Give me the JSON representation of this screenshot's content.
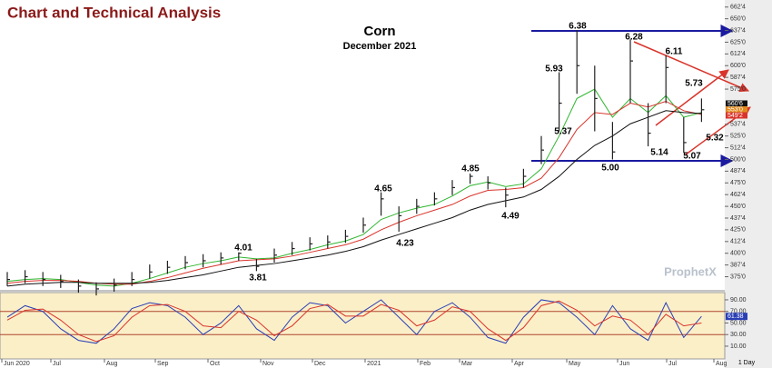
{
  "header": {
    "title": "Chart and Technical Analysis"
  },
  "chart_data": [
    {
      "type": "ohlc",
      "title": "Corn",
      "subtitle": "December 2021",
      "high": [
        380,
        382,
        380,
        377,
        372,
        369,
        373,
        380,
        388,
        392,
        397,
        399,
        401,
        401,
        394,
        405,
        412,
        417,
        419,
        425,
        438,
        465,
        450,
        458,
        465,
        478,
        485,
        482,
        470,
        490,
        525,
        593,
        638,
        600,
        540,
        628,
        560,
        611,
        545,
        565
      ],
      "low": [
        365,
        368,
        365,
        363,
        358,
        355,
        359,
        365,
        373,
        378,
        383,
        385,
        388,
        392,
        381,
        390,
        398,
        403,
        405,
        411,
        422,
        440,
        423,
        442,
        451,
        462,
        474,
        468,
        449,
        470,
        495,
        530,
        570,
        530,
        500,
        560,
        514,
        560,
        507,
        540
      ],
      "close": [
        372,
        375,
        372,
        370,
        365,
        362,
        366,
        372,
        380,
        385,
        390,
        392,
        395,
        400,
        386,
        398,
        405,
        410,
        412,
        418,
        430,
        458,
        440,
        450,
        458,
        470,
        482,
        475,
        462,
        482,
        510,
        560,
        600,
        565,
        508,
        605,
        528,
        598,
        518,
        553
      ],
      "color": "#222222",
      "series": [
        {
          "color": "#2fb52f",
          "values": [
            370,
            372,
            373,
            372,
            369,
            366,
            365,
            368,
            373,
            379,
            385,
            389,
            392,
            396,
            394,
            395,
            400,
            404,
            409,
            413,
            420,
            436,
            443,
            448,
            452,
            461,
            472,
            476,
            471,
            474,
            490,
            525,
            565,
            575,
            545,
            565,
            550,
            568,
            545,
            550
          ]
        },
        {
          "color": "#d9342b",
          "values": [
            368,
            370,
            371,
            371,
            370,
            368,
            367,
            367,
            370,
            374,
            379,
            384,
            388,
            392,
            393,
            394,
            397,
            401,
            405,
            409,
            415,
            425,
            433,
            440,
            446,
            452,
            461,
            467,
            468,
            470,
            480,
            502,
            532,
            550,
            548,
            560,
            556,
            562,
            552,
            548
          ]
        },
        {
          "color": "#111111",
          "values": [
            365,
            367,
            368,
            369,
            369,
            368,
            368,
            368,
            369,
            371,
            374,
            377,
            381,
            385,
            387,
            389,
            392,
            395,
            398,
            402,
            407,
            414,
            420,
            426,
            432,
            438,
            446,
            452,
            456,
            460,
            468,
            482,
            500,
            515,
            525,
            538,
            545,
            552,
            550,
            549
          ]
        }
      ],
      "ylim": [
        360,
        670
      ],
      "yticks": [
        {
          "value": 662.5,
          "label": "662'4"
        },
        {
          "value": 650,
          "label": "650'0"
        },
        {
          "value": 637.5,
          "label": "637'4"
        },
        {
          "value": 625,
          "label": "625'0"
        },
        {
          "value": 612.5,
          "label": "612'4"
        },
        {
          "value": 600,
          "label": "600'0"
        },
        {
          "value": 587.5,
          "label": "587'4"
        },
        {
          "value": 575,
          "label": "575'0"
        },
        {
          "value": 537.5,
          "label": "537'4"
        },
        {
          "value": 525,
          "label": "525'0"
        },
        {
          "value": 512.5,
          "label": "512'4"
        },
        {
          "value": 500,
          "label": "500'0"
        },
        {
          "value": 487.5,
          "label": "487'4"
        },
        {
          "value": 475,
          "label": "475'0"
        },
        {
          "value": 462.5,
          "label": "462'4"
        },
        {
          "value": 450,
          "label": "450'0"
        },
        {
          "value": 437.5,
          "label": "437'4"
        },
        {
          "value": 425,
          "label": "425'0"
        },
        {
          "value": 412.5,
          "label": "412'4"
        },
        {
          "value": 400,
          "label": "400'0"
        },
        {
          "value": 387.5,
          "label": "387'4"
        },
        {
          "value": 375,
          "label": "375'0"
        }
      ],
      "annotations": [
        "6.38",
        "6.28",
        "6.11",
        "5.93",
        "5.73",
        "5.37",
        "5.32",
        "5.14",
        "5.07",
        "5.00",
        "4.85",
        "4.65",
        "4.49",
        "4.23",
        "4.01",
        "3.81"
      ],
      "last_prices": [
        {
          "label": "560'6",
          "color": "#111111"
        },
        {
          "label": "553'0",
          "color": "#e08a1e"
        },
        {
          "label": "549'2",
          "color": "#d9342b"
        }
      ]
    },
    {
      "type": "line",
      "series": [
        {
          "color": "#2b3fb5",
          "values": [
            60,
            80,
            70,
            40,
            20,
            15,
            40,
            75,
            85,
            80,
            60,
            30,
            50,
            80,
            40,
            20,
            60,
            85,
            80,
            50,
            70,
            90,
            60,
            30,
            70,
            85,
            60,
            25,
            15,
            60,
            90,
            85,
            60,
            30,
            80,
            40,
            20,
            85,
            25,
            61.38
          ],
          "value_label": "61.38"
        },
        {
          "color": "#d9342b",
          "values": [
            55,
            72,
            74,
            55,
            30,
            18,
            28,
            60,
            80,
            82,
            70,
            45,
            42,
            70,
            55,
            28,
            45,
            75,
            82,
            62,
            62,
            82,
            72,
            45,
            55,
            78,
            70,
            40,
            20,
            42,
            80,
            88,
            72,
            45,
            62,
            55,
            30,
            65,
            45,
            50
          ]
        }
      ],
      "ylim": [
        -12,
        102.5
      ],
      "yticks": [
        {
          "value": 90,
          "label": "90.00"
        },
        {
          "value": 70,
          "label": "70.00"
        },
        {
          "value": 50,
          "label": "50.00"
        },
        {
          "value": 30,
          "label": "30.00"
        },
        {
          "value": 10,
          "label": "10.00"
        }
      ],
      "reference_lines": [
        70,
        30
      ]
    }
  ],
  "x_labels": [
    "Jun 2020",
    "Jul",
    "Aug",
    "Sep",
    "Oct",
    "Nov",
    "Dec",
    "2021",
    "Feb",
    "Mar",
    "Apr",
    "May",
    "Jun",
    "Jul",
    "Aug"
  ],
  "watermark": "ProphetX",
  "interval": "1 Day"
}
